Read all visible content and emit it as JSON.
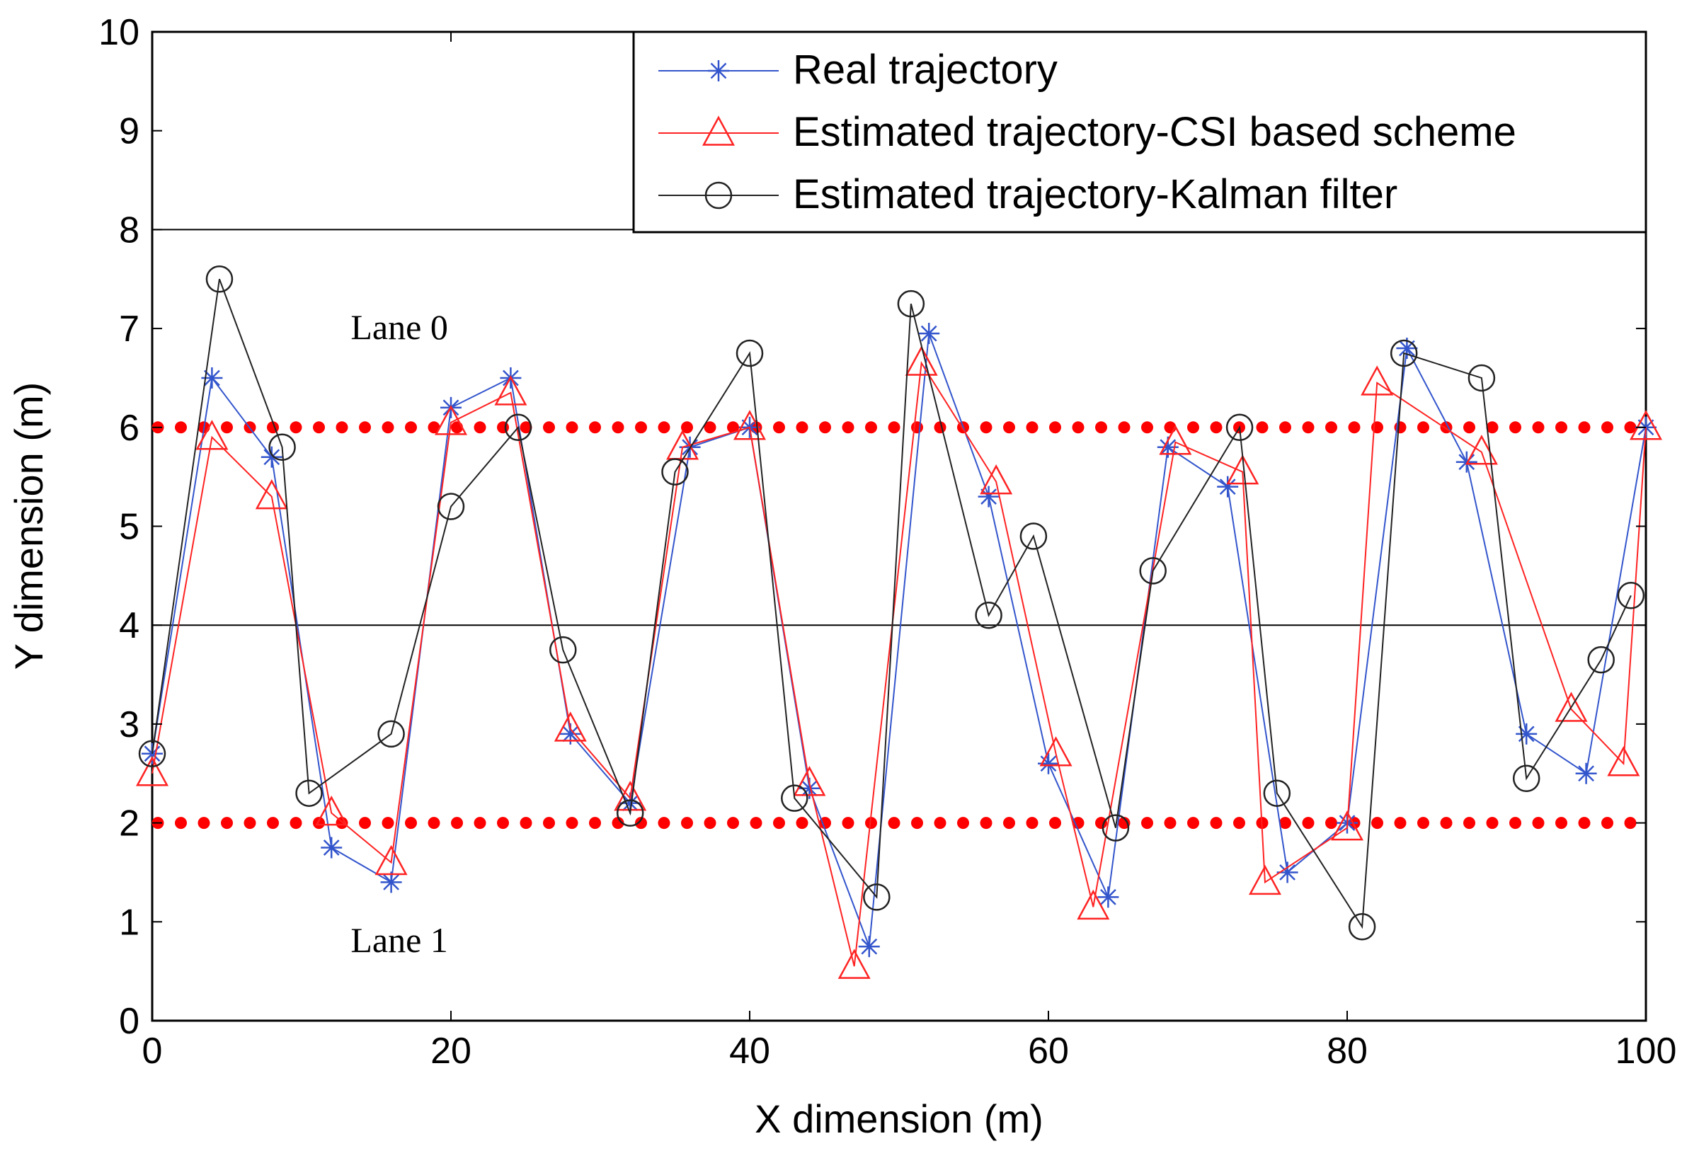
{
  "chart_data": {
    "type": "line",
    "xlabel": "X dimension (m)",
    "ylabel": "Y dimension (m)",
    "xlim": [
      0,
      100
    ],
    "ylim": [
      0,
      10
    ],
    "xticks": [
      "0",
      "20",
      "40",
      "60",
      "80",
      "100"
    ],
    "yticks": [
      "0",
      "1",
      "2",
      "3",
      "4",
      "5",
      "6",
      "7",
      "8",
      "9",
      "10"
    ],
    "grid": false,
    "legend_position": "top-right",
    "reference_lines": [
      {
        "name": "lane-divider-top",
        "style": "solid",
        "color": "#000000",
        "y": 8
      },
      {
        "name": "lane-divider-middle",
        "style": "solid",
        "color": "#000000",
        "y": 4
      },
      {
        "name": "lane-0-center",
        "style": "dotted",
        "color": "#ff0000",
        "y": 6
      },
      {
        "name": "lane-1-center",
        "style": "dotted",
        "color": "#ff0000",
        "y": 2
      }
    ],
    "annotations": [
      {
        "text": "Lane 0",
        "x": 14,
        "y": 7
      },
      {
        "text": "Lane 1",
        "x": 14,
        "y": 0.8
      }
    ],
    "series": [
      {
        "name": "Real trajectory",
        "color": "#3355cc",
        "marker": "star",
        "x": [
          0,
          4,
          8,
          12,
          16,
          20,
          24,
          28,
          32,
          36,
          40,
          44,
          48,
          52,
          56,
          60,
          64,
          68,
          72,
          76,
          80,
          84,
          88,
          92,
          96,
          100
        ],
        "y": [
          2.7,
          6.5,
          5.7,
          1.75,
          1.4,
          6.2,
          6.5,
          2.9,
          2.2,
          5.8,
          6.0,
          2.35,
          0.75,
          6.95,
          5.3,
          2.6,
          1.25,
          5.8,
          5.4,
          1.5,
          2.0,
          6.8,
          5.65,
          2.9,
          2.5,
          6.0
        ]
      },
      {
        "name": "Estimated trajectory-CSI based scheme",
        "color": "#ff2222",
        "marker": "triangle",
        "x": [
          0,
          4,
          8,
          12,
          16,
          20,
          24,
          28,
          32,
          35.5,
          40,
          44,
          47,
          51.5,
          56.5,
          60.5,
          63,
          68.5,
          73,
          74.5,
          80,
          82,
          89,
          95,
          98.5,
          100
        ],
        "y": [
          2.5,
          5.9,
          5.3,
          2.1,
          1.6,
          6.05,
          6.35,
          2.95,
          2.25,
          5.8,
          6.0,
          2.4,
          0.55,
          6.65,
          5.45,
          2.7,
          1.15,
          5.85,
          5.55,
          1.4,
          1.95,
          6.45,
          5.75,
          3.15,
          2.6,
          6.0
        ]
      },
      {
        "name": "Estimated trajectory-Kalman filter",
        "color": "#222222",
        "marker": "circle",
        "x": [
          0,
          4.5,
          8.7,
          10.5,
          16,
          20,
          24.5,
          27.5,
          32,
          35,
          40,
          43,
          48.5,
          50.8,
          56,
          59,
          64.5,
          67,
          72.8,
          75.3,
          81,
          83.8,
          89,
          92,
          97,
          99
        ],
        "y": [
          2.7,
          7.5,
          5.8,
          2.3,
          2.9,
          5.2,
          6.0,
          3.75,
          2.1,
          5.55,
          6.75,
          2.25,
          1.25,
          7.25,
          4.1,
          4.9,
          1.95,
          4.55,
          6.0,
          2.3,
          0.95,
          6.75,
          6.5,
          2.45,
          3.65,
          4.3
        ]
      }
    ]
  }
}
